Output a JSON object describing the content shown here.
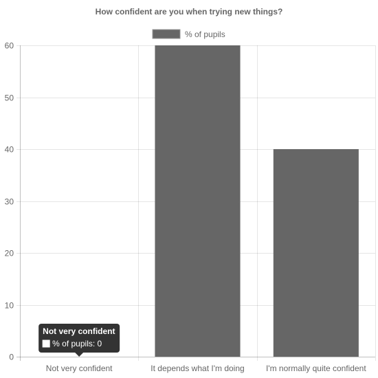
{
  "chart_data": {
    "type": "bar",
    "title": "How confident are you when trying new things?",
    "categories": [
      "Not very confident",
      "It depends what I'm doing",
      "I'm normally quite confident"
    ],
    "series": [
      {
        "name": "% of pupils",
        "values": [
          0,
          60,
          40
        ],
        "color": "#666666"
      }
    ],
    "ylim": [
      0,
      60
    ],
    "yticks": [
      0,
      10,
      20,
      30,
      40,
      50,
      60
    ],
    "grid": true,
    "legend": "top",
    "tooltip": {
      "title": "Not very confident",
      "label": "% of pupils: 0"
    }
  }
}
